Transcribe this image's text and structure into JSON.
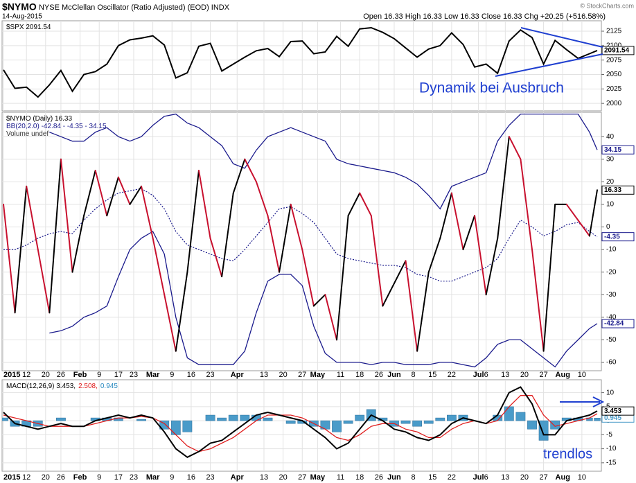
{
  "header": {
    "symbol": "$NYMO",
    "title": "NYSE McClellan Oscillator (Ratio Adjusted) (EOD) INDX",
    "date": "14-Aug-2015",
    "quote": "Open 16.33  High 16.33  Low 16.33  Close 16.33  Chg +20.25 (+516.58%)",
    "copyright": "© StockCharts.com"
  },
  "annotations": [
    "Dynamik bei Ausbruch",
    "trendlos"
  ],
  "chart_data": {
    "type": "line",
    "grid": true,
    "x": [
      0,
      3,
      6,
      9,
      12,
      15,
      18,
      21,
      24,
      27,
      30,
      33,
      36,
      39,
      42,
      45,
      48,
      51,
      54,
      57,
      60,
      63,
      66,
      69,
      72,
      75,
      78,
      81,
      84,
      87,
      90,
      93,
      96,
      99,
      102,
      105,
      108,
      111,
      114,
      117,
      120,
      123,
      126,
      129,
      132,
      135,
      138,
      141,
      144,
      147,
      150,
      153,
      155
    ],
    "xlim": [
      0,
      155
    ],
    "xticks": [
      {
        "value": 0,
        "label": "2015"
      },
      {
        "value": 6,
        "label": "12"
      },
      {
        "value": 11,
        "label": "20"
      },
      {
        "value": 15,
        "label": "26"
      },
      {
        "value": 20,
        "label": "Feb"
      },
      {
        "value": 25,
        "label": "9"
      },
      {
        "value": 30,
        "label": "17"
      },
      {
        "value": 34,
        "label": "23"
      },
      {
        "value": 39,
        "label": "Mar"
      },
      {
        "value": 44,
        "label": "9"
      },
      {
        "value": 49,
        "label": "16"
      },
      {
        "value": 54,
        "label": "23"
      },
      {
        "value": 61,
        "label": "Apr"
      },
      {
        "value": 68,
        "label": "13"
      },
      {
        "value": 73,
        "label": "20"
      },
      {
        "value": 78,
        "label": "27"
      },
      {
        "value": 82,
        "label": "May"
      },
      {
        "value": 88,
        "label": "11"
      },
      {
        "value": 93,
        "label": "18"
      },
      {
        "value": 98,
        "label": "26"
      },
      {
        "value": 102,
        "label": "Jun"
      },
      {
        "value": 107,
        "label": "8"
      },
      {
        "value": 112,
        "label": "15"
      },
      {
        "value": 117,
        "label": "22"
      },
      {
        "value": 124,
        "label": "Jul"
      },
      {
        "value": 126,
        "label": "6"
      },
      {
        "value": 131,
        "label": "13"
      },
      {
        "value": 136,
        "label": "20"
      },
      {
        "value": 141,
        "label": "27"
      },
      {
        "value": 146,
        "label": "Aug"
      },
      {
        "value": 151,
        "label": "10"
      }
    ],
    "panels": [
      {
        "legend": [
          [
            {
              "text": "$SPX 2091.54",
              "color": "#000000"
            }
          ]
        ],
        "ylim": [
          1987,
          2143
        ],
        "yticks": [
          2000,
          2025,
          2050,
          2075,
          2100,
          2125
        ],
        "series": [
          {
            "style": "line",
            "color": "#000000",
            "tag": true,
            "values": [
              2058,
              2026,
              2028,
              2011,
              2032,
              2057,
              2021,
              2050,
              2055,
              2068,
              2100,
              2110,
              2113,
              2117,
              2101,
              2044,
              2053,
              2099,
              2104,
              2056,
              2068,
              2080,
              2091,
              2095,
              2081,
              2107,
              2108,
              2086,
              2089,
              2116,
              2099,
              2129,
              2131,
              2123,
              2112,
              2096,
              2080,
              2094,
              2100,
              2122,
              2102,
              2063,
              2068,
              2052,
              2108,
              2127,
              2114,
              2068,
              2109,
              2093,
              2078,
              2086,
              2091.54
            ]
          }
        ]
      },
      {
        "legend": [
          [
            {
              "text": "$NYMO (Daily) 16.33",
              "color": "#000000"
            }
          ],
          [
            {
              "text": "BB(20,2.0) -42.84 - -4.35 - 34.15",
              "color": "#1a1a8c"
            }
          ],
          [
            {
              "text": "Volume undef",
              "color": "#333333"
            }
          ]
        ],
        "ylim": [
          -63.7,
          50.8
        ],
        "yticks": [
          40,
          30,
          20,
          10,
          0,
          -10,
          -20,
          -30,
          -40,
          -50,
          -60
        ],
        "series": [
          {
            "style": "line",
            "color": "#1a1a8c",
            "tag": true,
            "values": [
              null,
              null,
              null,
              null,
              42,
              40,
              38,
              38,
              42,
              44,
              40,
              38,
              40,
              45,
              49,
              50,
              46,
              44,
              40,
              36,
              28,
              26,
              34,
              40,
              42,
              44,
              42,
              40,
              38,
              30,
              28,
              27,
              26,
              25,
              24,
              22,
              19,
              14,
              8,
              18,
              20,
              22,
              24,
              38,
              45,
              50,
              50,
              50,
              50,
              50,
              50,
              42,
              34.15
            ]
          },
          {
            "style": "dotted",
            "color": "#1a1a8c",
            "tag": true,
            "values": [
              -10,
              -10,
              -8,
              -5,
              -3,
              -2,
              -3,
              3,
              8,
              12,
              15,
              16,
              17,
              14,
              8,
              -2,
              -8,
              -10,
              -12,
              -14,
              -15,
              -10,
              -4,
              2,
              8,
              9,
              6,
              2,
              -5,
              -12,
              -14,
              -15,
              -16,
              -17,
              -17,
              -18,
              -21,
              -22,
              -24,
              -24,
              -22,
              -20,
              -18,
              -14,
              -5,
              3,
              0,
              -4,
              -2,
              1,
              2,
              -2,
              -4.35
            ]
          },
          {
            "style": "line",
            "color": "#1a1a8c",
            "tag": true,
            "values": [
              null,
              null,
              null,
              null,
              -47,
              -46,
              -44,
              -40,
              -38,
              -35,
              -22,
              -10,
              -5,
              -2,
              -12,
              -40,
              -58,
              -61,
              -61,
              -61,
              -61,
              -55,
              -38,
              -24,
              -21,
              -21,
              -26,
              -44,
              -56,
              -60,
              -60,
              -60,
              -61,
              -60,
              -60,
              -61,
              -61,
              -61,
              -60,
              -60,
              -61,
              -62,
              -58,
              -52,
              -50,
              -50,
              -54,
              -58,
              -62,
              -55,
              -50,
              -45,
              -42.84
            ]
          },
          {
            "style": "updown",
            "color": "#000000",
            "down_color": "#c8102e",
            "tag": true,
            "values": [
              10,
              -38,
              18,
              -10,
              -38,
              30,
              -20,
              5,
              25,
              5,
              22,
              10,
              18,
              -5,
              -30,
              -55,
              -20,
              25,
              -5,
              -22,
              15,
              30,
              20,
              5,
              -20,
              10,
              -10,
              -35,
              -30,
              -50,
              5,
              15,
              5,
              -35,
              -25,
              -15,
              -55,
              -20,
              -5,
              15,
              -10,
              5,
              -30,
              -5,
              40,
              30,
              -10,
              -55,
              10,
              10,
              3,
              -4,
              16.33
            ]
          }
        ]
      },
      {
        "legend": [
          [
            {
              "text": "MACD(12,26,9) 3.453,",
              "color": "#000000"
            },
            {
              "text": "2.508,",
              "color": "#e02020"
            },
            {
              "text": "0.945",
              "color": "#2a8ac0"
            }
          ]
        ],
        "ylim": [
          -18,
          14.6
        ],
        "yticks": [
          10,
          5,
          0,
          -5,
          -10,
          -15
        ],
        "series": [
          {
            "style": "histogram",
            "color": "#4a9bc9",
            "tag": true,
            "values": [
              1,
              -2,
              -2,
              -2,
              0,
              1,
              0,
              0,
              1,
              1,
              1,
              0,
              0.5,
              0,
              -3,
              -5,
              -4,
              0,
              2,
              1,
              2,
              2,
              2,
              1,
              0,
              -1,
              -1,
              -2,
              -3,
              -4,
              -1,
              2,
              4,
              1,
              -2,
              -1,
              -2,
              -1,
              1,
              2,
              2,
              0,
              0,
              2,
              5,
              3,
              -3,
              -7,
              -3,
              1,
              1,
              1,
              0.945
            ]
          },
          {
            "style": "line",
            "color": "#e02020",
            "values": [
              2,
              1,
              0,
              -1,
              -2,
              -2,
              -2,
              -2,
              -1,
              0,
              1,
              1,
              1.5,
              1,
              -1,
              -5,
              -9,
              -11,
              -10,
              -8,
              -6,
              -3,
              0,
              2,
              2,
              2,
              1,
              -1,
              -3,
              -6,
              -7,
              -5,
              -2,
              -1,
              -1,
              -3,
              -4,
              -6,
              -6,
              -3,
              -1,
              0,
              -1,
              0,
              5,
              9,
              9,
              2,
              -2,
              -1,
              0,
              1,
              2.508
            ]
          },
          {
            "style": "line",
            "color": "#000000",
            "tag": true,
            "values": [
              3,
              -1,
              -2,
              -3,
              -2,
              -1,
              -2,
              -2,
              0,
              1,
              2,
              1,
              2,
              1,
              -4,
              -10,
              -13,
              -11,
              -8,
              -7,
              -4,
              -1,
              2,
              3,
              2,
              1,
              0,
              -3,
              -6,
              -10,
              -8,
              -3,
              2,
              0,
              -3,
              -4,
              -6,
              -7,
              -5,
              -1,
              1,
              0,
              -1,
              2,
              10,
              12,
              6,
              -5,
              -5,
              0,
              1,
              2,
              3.453
            ]
          }
        ]
      }
    ]
  }
}
